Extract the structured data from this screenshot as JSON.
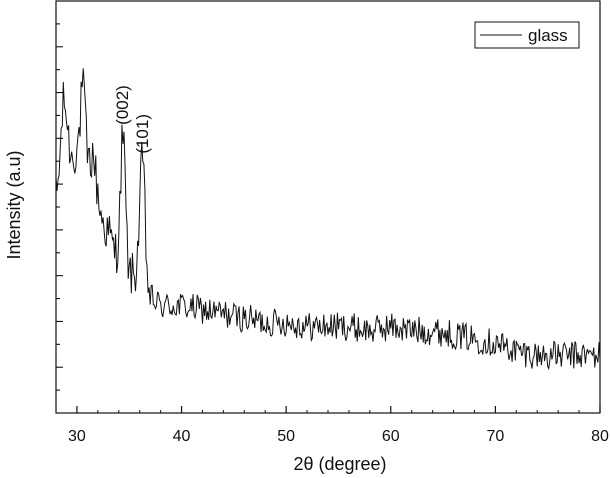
{
  "chart_data": {
    "type": "line",
    "title": "",
    "xlabel": "2θ (degree)",
    "ylabel": "Intensity (a.u)",
    "xlim": [
      28,
      80
    ],
    "ylim": [
      0,
      100
    ],
    "x_ticks": [
      30,
      40,
      50,
      60,
      70,
      80
    ],
    "x_tick_labels": [
      "30",
      "40",
      "50",
      "60",
      "70",
      "80"
    ],
    "y_tick_labels_shown": false,
    "y_minor_tick_count": 18,
    "grid": false,
    "legend": {
      "position": "top-right",
      "entries": [
        "glass"
      ]
    },
    "line_color": "#111111",
    "series": [
      {
        "name": "glass",
        "anchors_x": [
          28,
          28.5,
          29,
          29.5,
          30,
          30.5,
          31,
          31.5,
          32,
          32.5,
          33,
          33.5,
          34,
          34.5,
          35,
          35.5,
          36,
          36.3,
          36.6,
          37,
          37.5,
          38,
          40,
          42,
          44,
          46,
          48,
          50,
          52,
          54,
          56,
          58,
          60,
          62,
          64,
          66,
          68,
          70,
          72,
          74,
          76,
          78,
          80
        ],
        "anchors_y": [
          52,
          60,
          68,
          62,
          64,
          67,
          60,
          58,
          52,
          46,
          44,
          40,
          38,
          37,
          34,
          33,
          40,
          34,
          30,
          28,
          27,
          26,
          26,
          25,
          24,
          23,
          22,
          22,
          21,
          21,
          21,
          20,
          21,
          20,
          20,
          19,
          18,
          17,
          15,
          14,
          14,
          14,
          14
        ],
        "peaks": [
          {
            "label": "(002)",
            "x": 34.4,
            "y": 68
          },
          {
            "label": "(101)",
            "x": 36.3,
            "y": 61
          }
        ],
        "local_maxima": [
          {
            "x": 28.7,
            "y": 75
          },
          {
            "x": 30.6,
            "y": 79
          },
          {
            "x": 31.6,
            "y": 62
          }
        ],
        "noise_amplitude": 3.5,
        "points": 520
      }
    ]
  }
}
